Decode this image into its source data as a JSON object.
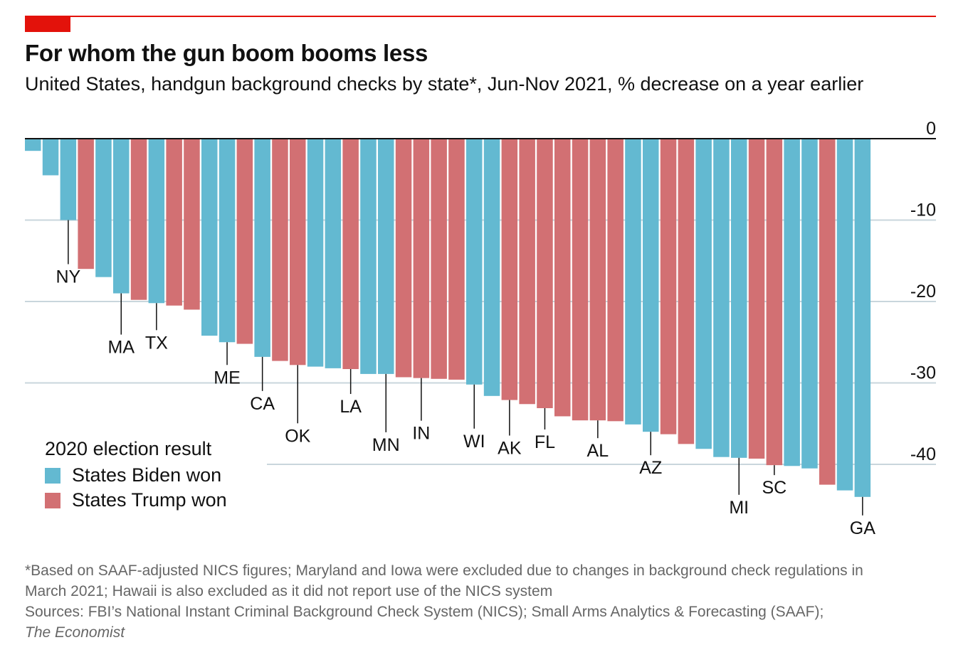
{
  "header": {
    "title": "For whom the gun boom booms less",
    "subtitle": "United States, handgun background checks by state*, Jun-Nov 2021, % decrease on a year earlier"
  },
  "legend": {
    "title": "2020 election result",
    "items": [
      {
        "label": "States Biden won",
        "color": "#63b9d1"
      },
      {
        "label": "States Trump won",
        "color": "#d27073"
      }
    ]
  },
  "colors": {
    "biden": "#63b9d1",
    "trump": "#d27073",
    "accent": "#e3120b",
    "grid": "#c9d6dc"
  },
  "chart_data": {
    "type": "bar",
    "title": "For whom the gun boom booms less",
    "ylabel": "% decrease on a year earlier",
    "ylim": [
      -45,
      0
    ],
    "yticks": [
      0,
      -10,
      -20,
      -30,
      -40
    ],
    "ytick_labels": [
      "0",
      "-10",
      "-20",
      "-30",
      "-40"
    ],
    "grid": true,
    "categories": [
      "",
      "",
      "NY",
      "",
      "",
      "MA",
      "",
      "TX",
      "",
      "",
      "",
      "ME",
      "",
      "CA",
      "",
      "OK",
      "",
      "",
      "LA",
      "",
      "MN",
      "",
      "IN",
      "",
      "",
      "WI",
      "",
      "AK",
      "",
      "FL",
      "",
      "",
      "AL",
      "",
      "",
      "AZ",
      "",
      "",
      "",
      "",
      "MI",
      "",
      "SC",
      "",
      "",
      "",
      "",
      "GA"
    ],
    "parties": [
      "D",
      "D",
      "D",
      "R",
      "D",
      "D",
      "R",
      "D",
      "R",
      "R",
      "D",
      "D",
      "R",
      "D",
      "R",
      "R",
      "D",
      "D",
      "R",
      "D",
      "D",
      "R",
      "R",
      "R",
      "R",
      "D",
      "D",
      "R",
      "R",
      "R",
      "R",
      "R",
      "R",
      "R",
      "D",
      "D",
      "R",
      "R",
      "D",
      "D",
      "D",
      "R",
      "R",
      "D",
      "D",
      "R",
      "D",
      "D"
    ],
    "values": [
      -1.5,
      -4.5,
      -10,
      -16,
      -17,
      -19,
      -19.8,
      -20.2,
      -20.5,
      -21,
      -24.2,
      -25,
      -25.2,
      -26.8,
      -27.3,
      -27.8,
      -28,
      -28.2,
      -28.3,
      -28.9,
      -28.9,
      -29.3,
      -29.4,
      -29.5,
      -29.6,
      -30.2,
      -31.6,
      -32.1,
      -32.6,
      -33.1,
      -34.1,
      -34.6,
      -34.6,
      -34.7,
      -35.1,
      -36,
      -36.3,
      -37.5,
      -38.1,
      -39.1,
      -39.2,
      -39.3,
      -40.1,
      -40.2,
      -40.5,
      -42.5,
      -43.2,
      -44
    ],
    "label_offsets": [
      0,
      0,
      62,
      0,
      0,
      58,
      0,
      38,
      0,
      0,
      0,
      32,
      0,
      48,
      0,
      82,
      0,
      0,
      35,
      0,
      82,
      0,
      60,
      0,
      0,
      62,
      0,
      50,
      0,
      30,
      0,
      0,
      25,
      0,
      0,
      33,
      0,
      0,
      0,
      0,
      52,
      0,
      14,
      0,
      0,
      0,
      0,
      26
    ]
  },
  "footnote": {
    "note": "*Based on SAAF-adjusted NICS figures; Maryland and Iowa were excluded due to changes in background check regulations in March 2021; Hawaii is also excluded as it did not report use of the NICS system",
    "sources": "Sources: FBI’s National Instant Criminal Background Check System (NICS); Small Arms Analytics & Forecasting (SAAF);",
    "publisher": "The Economist"
  }
}
